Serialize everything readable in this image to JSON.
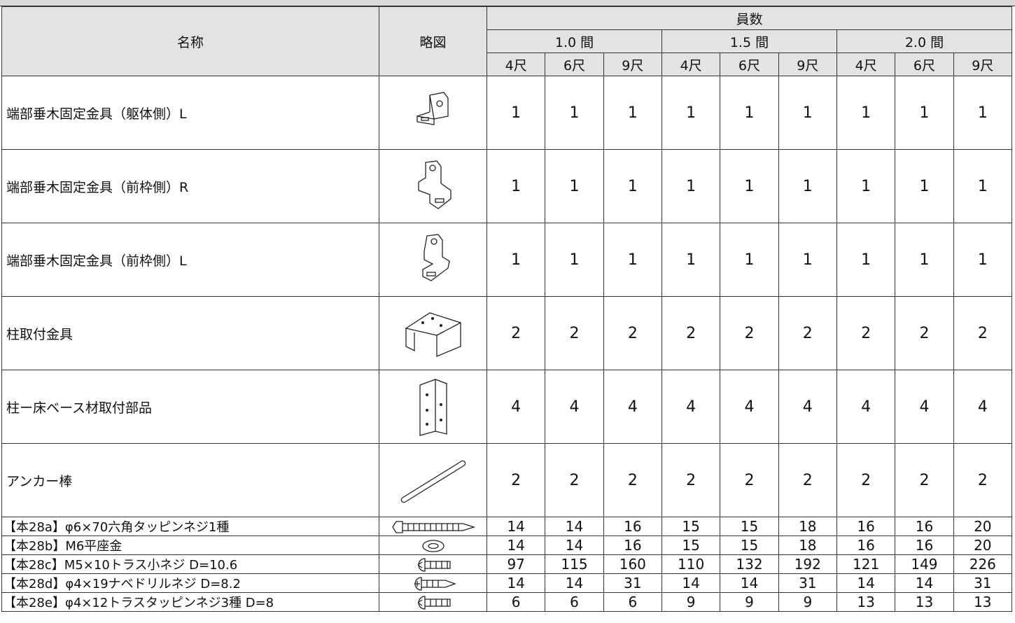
{
  "table": {
    "header": {
      "name": "名称",
      "diagram": "略図",
      "count": "員数",
      "groups": [
        {
          "label": "1.0 間",
          "sizes": [
            "4尺",
            "6尺",
            "9尺"
          ]
        },
        {
          "label": "1.5 間",
          "sizes": [
            "4尺",
            "6尺",
            "9尺"
          ]
        },
        {
          "label": "2.0 間",
          "sizes": [
            "4尺",
            "6尺",
            "9尺"
          ]
        }
      ]
    },
    "rows": [
      {
        "name": "端部垂木固定金具（躯体側）L",
        "counts": [
          1,
          1,
          1,
          1,
          1,
          1,
          1,
          1,
          1
        ]
      },
      {
        "name": "端部垂木固定金具（前枠側）R",
        "counts": [
          1,
          1,
          1,
          1,
          1,
          1,
          1,
          1,
          1
        ]
      },
      {
        "name": "端部垂木固定金具（前枠側）L",
        "counts": [
          1,
          1,
          1,
          1,
          1,
          1,
          1,
          1,
          1
        ]
      },
      {
        "name": "柱取付金具",
        "counts": [
          2,
          2,
          2,
          2,
          2,
          2,
          2,
          2,
          2
        ]
      },
      {
        "name": "柱ー床ベース材取付部品",
        "counts": [
          4,
          4,
          4,
          4,
          4,
          4,
          4,
          4,
          4
        ]
      },
      {
        "name": "アンカー棒",
        "counts": [
          2,
          2,
          2,
          2,
          2,
          2,
          2,
          2,
          2
        ]
      },
      {
        "name": "【本28a】φ6×70六角タッピンネジ1種",
        "counts": [
          14,
          14,
          16,
          15,
          15,
          18,
          16,
          16,
          20
        ]
      },
      {
        "name": "【本28b】M6平座金",
        "counts": [
          14,
          14,
          16,
          15,
          15,
          18,
          16,
          16,
          20
        ]
      },
      {
        "name": "【本28c】M5×10トラス小ネジ D=10.6",
        "counts": [
          97,
          115,
          160,
          110,
          132,
          192,
          121,
          149,
          226
        ]
      },
      {
        "name": "【本28d】φ4×19ナベドリルネジ D=8.2",
        "counts": [
          14,
          14,
          31,
          14,
          14,
          31,
          14,
          14,
          31
        ]
      },
      {
        "name": "【本28e】φ4×12トラスタッピンネジ3種 D=8",
        "counts": [
          6,
          6,
          6,
          9,
          9,
          9,
          13,
          13,
          13
        ]
      }
    ]
  }
}
